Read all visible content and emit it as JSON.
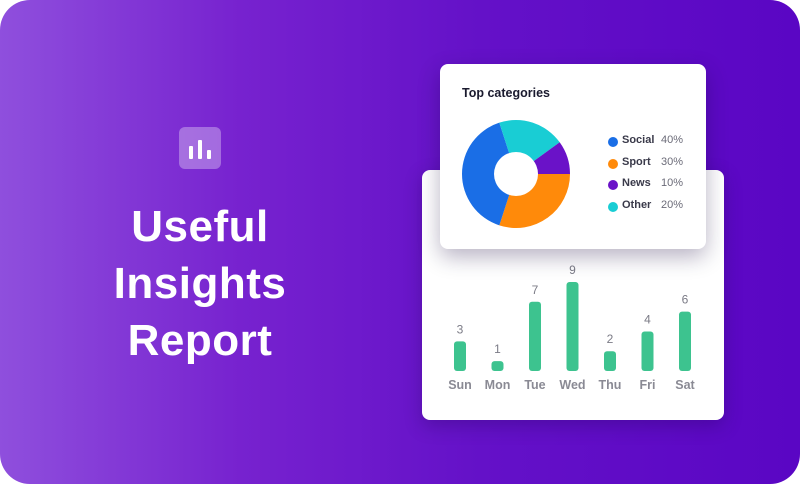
{
  "headline": {
    "line1": "Useful",
    "line2": "Insights",
    "line3": "Report"
  },
  "logo": {
    "icon": "bar-chart-icon"
  },
  "colors": {
    "bar": "#3dc38f",
    "background_start": "#8f4fdd",
    "background_end": "#5a06c4"
  },
  "pie_card": {
    "title": "Top categories",
    "legend": [
      {
        "label": "Social",
        "percent": "40%",
        "color": "#1a6ee6"
      },
      {
        "label": "Sport",
        "percent": "30%",
        "color": "#ff8a0a"
      },
      {
        "label": "News",
        "percent": "10%",
        "color": "#6a12c8"
      },
      {
        "label": "Other",
        "percent": "20%",
        "color": "#19cdd4"
      }
    ]
  },
  "chart_data": [
    {
      "type": "pie",
      "title": "Top categories",
      "categories": [
        "Social",
        "Sport",
        "News",
        "Other"
      ],
      "values": [
        40,
        30,
        10,
        20
      ],
      "colors": [
        "#1a6ee6",
        "#ff8a0a",
        "#6a12c8",
        "#19cdd4"
      ],
      "donut": true,
      "legend": "right"
    },
    {
      "type": "bar",
      "categories": [
        "Sun",
        "Mon",
        "Tue",
        "Wed",
        "Thu",
        "Fri",
        "Sat"
      ],
      "values": [
        3,
        1,
        7,
        9,
        2,
        4,
        6
      ],
      "data_labels": true,
      "ylim": [
        0,
        9
      ],
      "grid": false
    }
  ]
}
